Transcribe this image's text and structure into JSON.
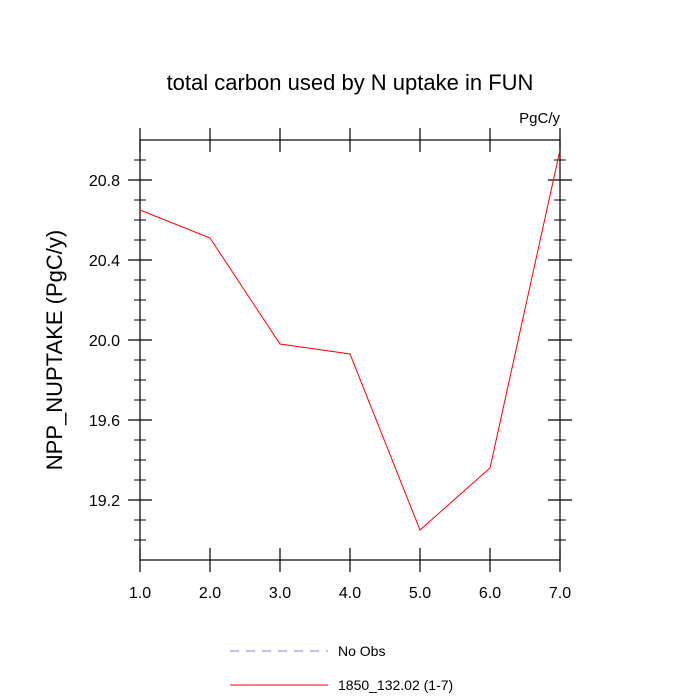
{
  "chart_data": {
    "type": "line",
    "title": "total carbon used by N uptake in FUN",
    "units_label": "PgC/y",
    "ylabel": "NPP_NUPTAKE  (PgC/y)",
    "xlabel": "",
    "xlim": [
      1.0,
      7.0
    ],
    "ylim": [
      18.9,
      21.0
    ],
    "x_ticks": [
      "1.0",
      "2.0",
      "3.0",
      "4.0",
      "5.0",
      "6.0",
      "7.0"
    ],
    "y_ticks": [
      "19.2",
      "19.6",
      "20.0",
      "20.4",
      "20.8"
    ],
    "grid": false,
    "legend_position": "bottom",
    "series": [
      {
        "name": "No Obs",
        "color": "#8080ff",
        "dash": "dashed",
        "x": [],
        "y": []
      },
      {
        "name": "1850_132.02 (1-7)",
        "color": "#ff0000",
        "dash": "solid",
        "x": [
          1.0,
          2.0,
          3.0,
          4.0,
          5.0,
          6.0,
          7.0
        ],
        "y": [
          20.65,
          20.51,
          19.98,
          19.93,
          19.05,
          19.36,
          20.95
        ]
      }
    ]
  }
}
